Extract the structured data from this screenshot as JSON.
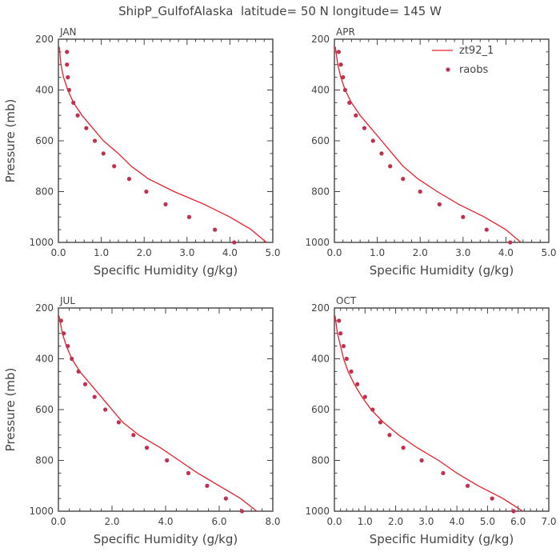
{
  "title": "ShipP_GulfofAlaska  latitude= 50 N longitude= 145 W",
  "colors": {
    "model": "#e8202a",
    "obs": "#c0304f",
    "axis": "#444444",
    "text": "#444444"
  },
  "legend": {
    "model_label": "zt92_1",
    "obs_label": "raobs"
  },
  "chart_data": [
    {
      "type": "line",
      "panel": "JAN",
      "xlabel": "Specific Humidity (g/kg)",
      "ylabel": "Pressure (mb)",
      "xlim": [
        0,
        5
      ],
      "ylim": [
        200,
        1000
      ],
      "y_reversed": true,
      "xticks": [
        "0.0",
        "1.0",
        "2.0",
        "3.0",
        "4.0",
        "5.0"
      ],
      "yticks": [
        "200",
        "400",
        "600",
        "800",
        "1000"
      ],
      "series": [
        {
          "name": "zt92_1",
          "kind": "line",
          "x": [
            0.02,
            0.06,
            0.12,
            0.22,
            0.35,
            0.55,
            0.8,
            1.05,
            1.4,
            1.7,
            2.1,
            2.7,
            3.4,
            4.0,
            4.5,
            4.85
          ],
          "y": [
            230,
            300,
            350,
            400,
            450,
            500,
            550,
            600,
            650,
            700,
            750,
            800,
            850,
            900,
            950,
            1000
          ]
        },
        {
          "name": "raobs",
          "kind": "scatter",
          "x": [
            0.2,
            0.2,
            0.22,
            0.25,
            0.35,
            0.45,
            0.65,
            0.85,
            1.05,
            1.3,
            1.65,
            2.05,
            2.5,
            3.05,
            3.65,
            4.1
          ],
          "y": [
            250,
            300,
            350,
            400,
            450,
            500,
            550,
            600,
            650,
            700,
            750,
            800,
            850,
            900,
            950,
            1000
          ]
        }
      ]
    },
    {
      "type": "line",
      "panel": "APR",
      "xlabel": "Specific Humidity (g/kg)",
      "ylabel": "",
      "xlim": [
        0,
        5
      ],
      "ylim": [
        200,
        1000
      ],
      "y_reversed": true,
      "xticks": [
        "0.0",
        "1.0",
        "2.0",
        "3.0",
        "4.0",
        "5.0"
      ],
      "yticks": [
        "200",
        "400",
        "600",
        "800",
        "1000"
      ],
      "series": [
        {
          "name": "zt92_1",
          "kind": "line",
          "x": [
            0.02,
            0.08,
            0.15,
            0.25,
            0.4,
            0.6,
            0.85,
            1.1,
            1.35,
            1.6,
            1.95,
            2.4,
            2.9,
            3.5,
            4.0,
            4.35
          ],
          "y": [
            230,
            300,
            350,
            400,
            450,
            500,
            550,
            600,
            650,
            700,
            750,
            800,
            850,
            900,
            950,
            1000
          ]
        },
        {
          "name": "raobs",
          "kind": "scatter",
          "x": [
            0.1,
            0.15,
            0.2,
            0.25,
            0.35,
            0.5,
            0.7,
            0.9,
            1.1,
            1.3,
            1.6,
            2.0,
            2.45,
            3.0,
            3.55,
            4.1
          ],
          "y": [
            250,
            300,
            350,
            400,
            450,
            500,
            550,
            600,
            650,
            700,
            750,
            800,
            850,
            900,
            950,
            1000
          ]
        }
      ]
    },
    {
      "type": "line",
      "panel": "JUL",
      "xlabel": "Specific Humidity (g/kg)",
      "ylabel": "Pressure (mb)",
      "xlim": [
        0,
        8
      ],
      "ylim": [
        200,
        1000
      ],
      "y_reversed": true,
      "xticks": [
        "0.0",
        "2.0",
        "4.0",
        "6.0",
        "8.0"
      ],
      "yticks": [
        "200",
        "400",
        "600",
        "800",
        "1000"
      ],
      "series": [
        {
          "name": "zt92_1",
          "kind": "line",
          "x": [
            0.02,
            0.15,
            0.3,
            0.5,
            0.8,
            1.2,
            1.6,
            2.0,
            2.4,
            3.0,
            3.8,
            4.5,
            5.2,
            6.0,
            6.8,
            7.4
          ],
          "y": [
            230,
            300,
            350,
            400,
            450,
            500,
            550,
            600,
            650,
            700,
            750,
            800,
            850,
            900,
            950,
            1000
          ]
        },
        {
          "name": "raobs",
          "kind": "scatter",
          "x": [
            0.1,
            0.2,
            0.35,
            0.5,
            0.75,
            1.0,
            1.35,
            1.75,
            2.25,
            2.8,
            3.3,
            4.05,
            4.85,
            5.55,
            6.25,
            6.85
          ],
          "y": [
            250,
            300,
            350,
            400,
            450,
            500,
            550,
            600,
            650,
            700,
            750,
            800,
            850,
            900,
            950,
            1000
          ]
        }
      ]
    },
    {
      "type": "line",
      "panel": "OCT",
      "xlabel": "Specific Humidity (g/kg)",
      "ylabel": "",
      "xlim": [
        0,
        7
      ],
      "ylim": [
        200,
        1000
      ],
      "y_reversed": true,
      "xticks": [
        "0.0",
        "1.0",
        "2.0",
        "3.0",
        "4.0",
        "5.0",
        "6.0",
        "7.0"
      ],
      "yticks": [
        "200",
        "400",
        "600",
        "800",
        "1000"
      ],
      "series": [
        {
          "name": "zt92_1",
          "kind": "line",
          "x": [
            0.02,
            0.1,
            0.2,
            0.3,
            0.45,
            0.65,
            0.9,
            1.2,
            1.6,
            2.1,
            2.7,
            3.4,
            4.0,
            4.7,
            5.5,
            6.15
          ],
          "y": [
            230,
            300,
            350,
            400,
            450,
            500,
            550,
            600,
            650,
            700,
            750,
            800,
            850,
            900,
            950,
            1000
          ]
        },
        {
          "name": "raobs",
          "kind": "scatter",
          "x": [
            0.15,
            0.2,
            0.3,
            0.4,
            0.55,
            0.75,
            1.0,
            1.25,
            1.5,
            1.8,
            2.25,
            2.85,
            3.55,
            4.35,
            5.15,
            5.85
          ],
          "y": [
            250,
            300,
            350,
            400,
            450,
            500,
            550,
            600,
            650,
            700,
            750,
            800,
            850,
            900,
            950,
            1000
          ]
        }
      ]
    }
  ]
}
